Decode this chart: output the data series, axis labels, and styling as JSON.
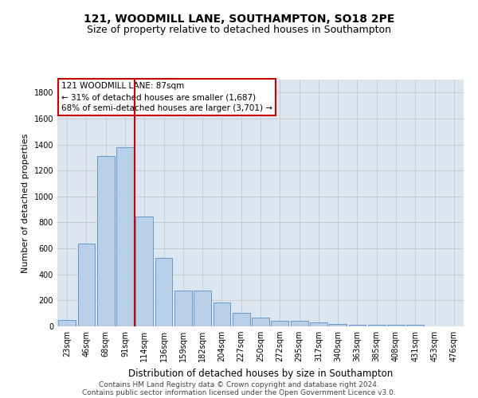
{
  "title_line1": "121, WOODMILL LANE, SOUTHAMPTON, SO18 2PE",
  "title_line2": "Size of property relative to detached houses in Southampton",
  "xlabel": "Distribution of detached houses by size in Southampton",
  "ylabel": "Number of detached properties",
  "categories": [
    "23sqm",
    "46sqm",
    "68sqm",
    "91sqm",
    "114sqm",
    "136sqm",
    "159sqm",
    "182sqm",
    "204sqm",
    "227sqm",
    "250sqm",
    "272sqm",
    "295sqm",
    "317sqm",
    "340sqm",
    "363sqm",
    "385sqm",
    "408sqm",
    "431sqm",
    "453sqm",
    "476sqm"
  ],
  "values": [
    50,
    640,
    1310,
    1380,
    845,
    530,
    275,
    275,
    185,
    105,
    65,
    40,
    40,
    30,
    20,
    10,
    10,
    10,
    10,
    0,
    0
  ],
  "bar_color": "#b8cfe8",
  "bar_edgecolor": "#6699cc",
  "vline_x_index": 3,
  "vline_color": "#cc0000",
  "annotation_line1": "121 WOODMILL LANE: 87sqm",
  "annotation_line2": "← 31% of detached houses are smaller (1,687)",
  "annotation_line3": "68% of semi-detached houses are larger (3,701) →",
  "annotation_box_edgecolor": "#cc0000",
  "annotation_box_facecolor": "#ffffff",
  "ylim": [
    0,
    1900
  ],
  "yticks": [
    0,
    200,
    400,
    600,
    800,
    1000,
    1200,
    1400,
    1600,
    1800
  ],
  "grid_color": "#cccccc",
  "plot_bg_color": "#dce6f0",
  "footer_line1": "Contains HM Land Registry data © Crown copyright and database right 2024.",
  "footer_line2": "Contains public sector information licensed under the Open Government Licence v3.0.",
  "title_fontsize": 10,
  "subtitle_fontsize": 9,
  "xlabel_fontsize": 8.5,
  "ylabel_fontsize": 8,
  "tick_fontsize": 7,
  "annotation_fontsize": 7.5,
  "footer_fontsize": 6.5
}
